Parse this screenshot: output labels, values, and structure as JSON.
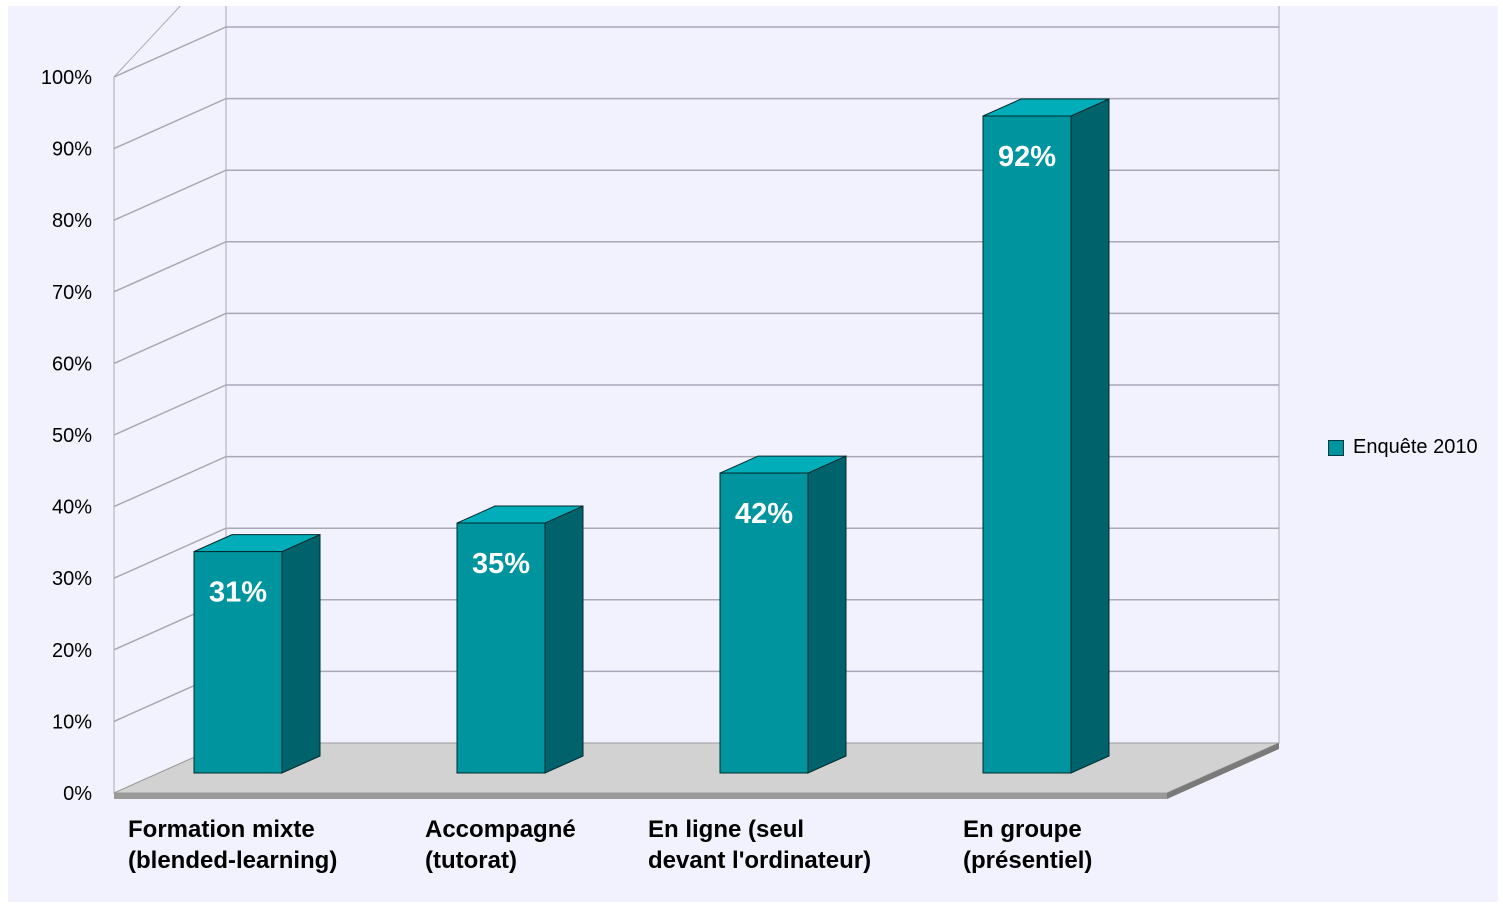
{
  "chart_data": {
    "type": "bar",
    "categories": [
      [
        "Formation mixte",
        "(blended-learning)"
      ],
      [
        "Accompagné",
        "(tutorat)"
      ],
      [
        "En ligne (seul",
        "devant l'ordinateur)"
      ],
      [
        "En groupe",
        "(présentiel)"
      ]
    ],
    "series": [
      {
        "name": "Enquête 2010",
        "values": [
          31,
          35,
          42,
          92
        ],
        "color": "#00959e"
      }
    ],
    "data_labels": [
      "31%",
      "35%",
      "42%",
      "92%"
    ],
    "y_ticks": [
      "0%",
      "10%",
      "20%",
      "30%",
      "40%",
      "50%",
      "60%",
      "70%",
      "80%",
      "90%",
      "100%"
    ],
    "ylim": [
      0,
      100
    ],
    "grid": true,
    "style": "3d-column",
    "legend_position": "right",
    "colors": {
      "bar_front": "#00959e",
      "bar_side": "#00626a",
      "bar_top": "#00adb8",
      "floor": "#d2d2d2",
      "background": "#f2f2fe",
      "gridline": "#a8a8b8"
    }
  }
}
